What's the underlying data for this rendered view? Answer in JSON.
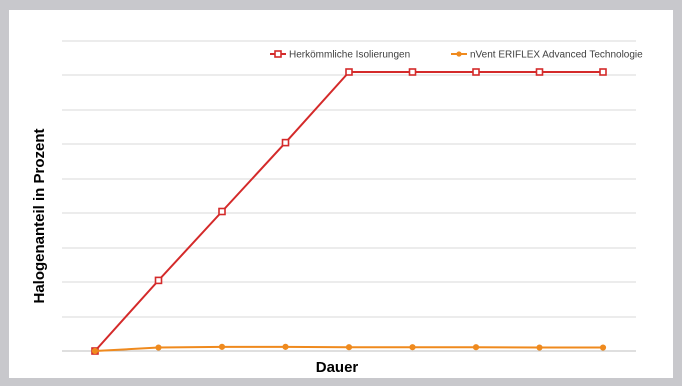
{
  "chart_data": {
    "type": "line",
    "title": "",
    "xlabel": "Dauer",
    "ylabel": "Halogenanteil in Prozent",
    "x": [
      1,
      2,
      3,
      4,
      5,
      6,
      7,
      8,
      9
    ],
    "ylim": [
      0,
      8
    ],
    "yticks": [
      0,
      1,
      2,
      3,
      4,
      5,
      6,
      7,
      8
    ],
    "grid": true,
    "legend_position": "top-right",
    "series": [
      {
        "name": "Herkömmliche Isolierungen",
        "color": "#d42a2a",
        "marker": "square",
        "values": [
          0,
          2.05,
          4.05,
          6.05,
          8.1,
          8.1,
          8.1,
          8.1,
          8.1
        ]
      },
      {
        "name": "nVent ERIFLEX Advanced Technologie",
        "color": "#ef8a1e",
        "marker": "diamond",
        "values": [
          0,
          0.1,
          0.12,
          0.12,
          0.11,
          0.11,
          0.11,
          0.1,
          0.1
        ]
      }
    ]
  }
}
